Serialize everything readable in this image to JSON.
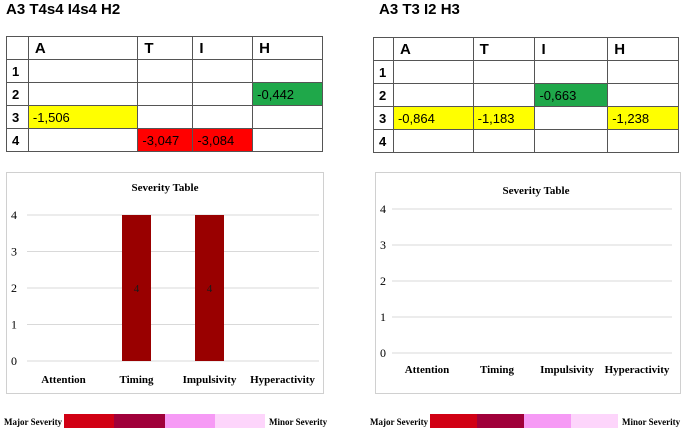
{
  "left": {
    "title": "A3 T4s4 I4s4 H2",
    "columns": [
      "A",
      "T",
      "I",
      "H"
    ],
    "rows": [
      {
        "label": "1",
        "cells": [
          "",
          "",
          "",
          ""
        ]
      },
      {
        "label": "2",
        "cells": [
          "",
          "",
          "",
          "-0,442"
        ]
      },
      {
        "label": "3",
        "cells": [
          "-1,506",
          "",
          "",
          ""
        ]
      },
      {
        "label": "4",
        "cells": [
          "",
          "-3,047",
          "-3,084",
          ""
        ]
      }
    ],
    "cell_colors": {
      "2-3": "#1fa84a",
      "3-0": "#ffff00",
      "4-1": "#ff0000",
      "4-2": "#ff0000"
    }
  },
  "right": {
    "title": "A3 T3 I2 H3",
    "columns": [
      "A",
      "T",
      "I",
      "H"
    ],
    "rows": [
      {
        "label": "1",
        "cells": [
          "",
          "",
          "",
          ""
        ]
      },
      {
        "label": "2",
        "cells": [
          "",
          "",
          "-0,663",
          ""
        ]
      },
      {
        "label": "3",
        "cells": [
          "-0,864",
          "-1,183",
          "",
          "-1,238"
        ]
      },
      {
        "label": "4",
        "cells": [
          "",
          "",
          "",
          ""
        ]
      }
    ],
    "cell_colors": {
      "2-2": "#1fa84a",
      "3-0": "#ffff00",
      "3-1": "#ffff00",
      "3-3": "#ffff00"
    }
  },
  "chart_data": [
    {
      "type": "bar",
      "title": "Severity Table",
      "categories": [
        "Attention",
        "Timing",
        "Impulsivity",
        "Hyperactivity"
      ],
      "values": [
        0,
        4,
        4,
        0
      ],
      "data_labels": [
        "",
        "4",
        "4",
        ""
      ],
      "ylim": [
        0,
        4
      ],
      "yticks": [
        0,
        1,
        2,
        3,
        4
      ],
      "grid": true,
      "bar_color": "#990000"
    },
    {
      "type": "bar",
      "title": "Severity Table",
      "categories": [
        "Attention",
        "Timing",
        "Impulsivity",
        "Hyperactivity"
      ],
      "values": [
        0,
        0,
        0,
        0
      ],
      "data_labels": [
        "",
        "",
        "",
        ""
      ],
      "ylim": [
        0,
        4
      ],
      "yticks": [
        0,
        1,
        2,
        3,
        4
      ],
      "grid": true,
      "bar_color": "#990000"
    }
  ],
  "legend": {
    "major_label": "Major Severity",
    "minor_label": "Minor Severity",
    "colors": [
      "#d10014",
      "#a0003a",
      "#f69af5",
      "#fdd5fb"
    ]
  }
}
